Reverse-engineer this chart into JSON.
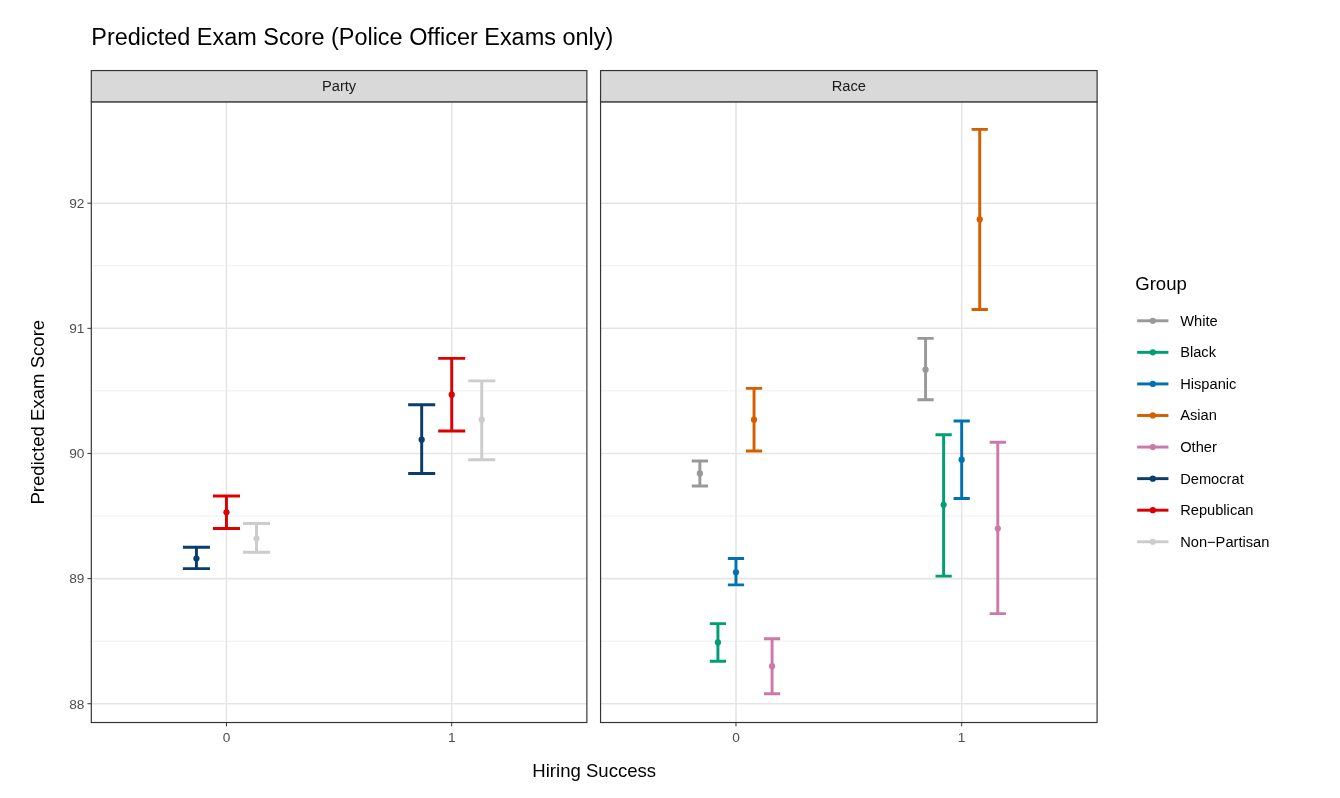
{
  "chart_data": [
    {
      "type": "scatter",
      "title": "Predicted Exam Score (Police Officer Exams only)",
      "subtitle": "Party",
      "xlabel": "Hiring Success",
      "ylabel": "Predicted Exam Score",
      "categories": [
        "0",
        "1"
      ],
      "ylim": [
        87.85,
        92.81
      ],
      "yticks": [
        88,
        89,
        90,
        91,
        92
      ],
      "grid": true,
      "marker": "circle",
      "legend": "right",
      "series": [
        {
          "name": "Democrat",
          "color": "#0b3c6e",
          "values": [
            89.16,
            90.11
          ],
          "errors": [
            [
              89.08,
              89.25
            ],
            [
              89.84,
              90.39
            ]
          ]
        },
        {
          "name": "Republican",
          "color": "#dd0000",
          "values": [
            89.53,
            90.47
          ],
          "errors": [
            [
              89.4,
              89.66
            ],
            [
              90.18,
              90.76
            ]
          ]
        },
        {
          "name": "Non−Partisan",
          "color": "#cccccc",
          "values": [
            89.32,
            90.27
          ],
          "errors": [
            [
              89.21,
              89.44
            ],
            [
              89.95,
              90.58
            ]
          ]
        }
      ]
    },
    {
      "type": "scatter",
      "subtitle": "Race",
      "categories": [
        "0",
        "1"
      ],
      "ylim": [
        87.85,
        92.81
      ],
      "yticks": [
        88,
        89,
        90,
        91,
        92
      ],
      "tick_labels": "x",
      "grid": true,
      "marker": "circle",
      "legend": "right",
      "legend_title": "Group",
      "series": [
        {
          "name": "White",
          "color": "#999999",
          "values": [
            89.84,
            90.67
          ],
          "errors": [
            [
              89.74,
              89.94
            ],
            [
              90.43,
              90.92
            ]
          ]
        },
        {
          "name": "Black",
          "color": "#009e73",
          "values": [
            88.49,
            89.59
          ],
          "errors": [
            [
              88.34,
              88.64
            ],
            [
              89.02,
              90.15
            ]
          ]
        },
        {
          "name": "Hispanic",
          "color": "#0072b2",
          "values": [
            89.05,
            89.95
          ],
          "errors": [
            [
              88.95,
              89.16
            ],
            [
              89.64,
              90.26
            ]
          ]
        },
        {
          "name": "Asian",
          "color": "#d55e00",
          "values": [
            90.27,
            91.87
          ],
          "errors": [
            [
              90.02,
              90.52
            ],
            [
              91.15,
              92.59
            ]
          ]
        },
        {
          "name": "Other",
          "color": "#cc79a7",
          "values": [
            88.3,
            89.4
          ],
          "errors": [
            [
              88.08,
              88.52
            ],
            [
              88.72,
              90.09
            ]
          ]
        }
      ]
    }
  ]
}
